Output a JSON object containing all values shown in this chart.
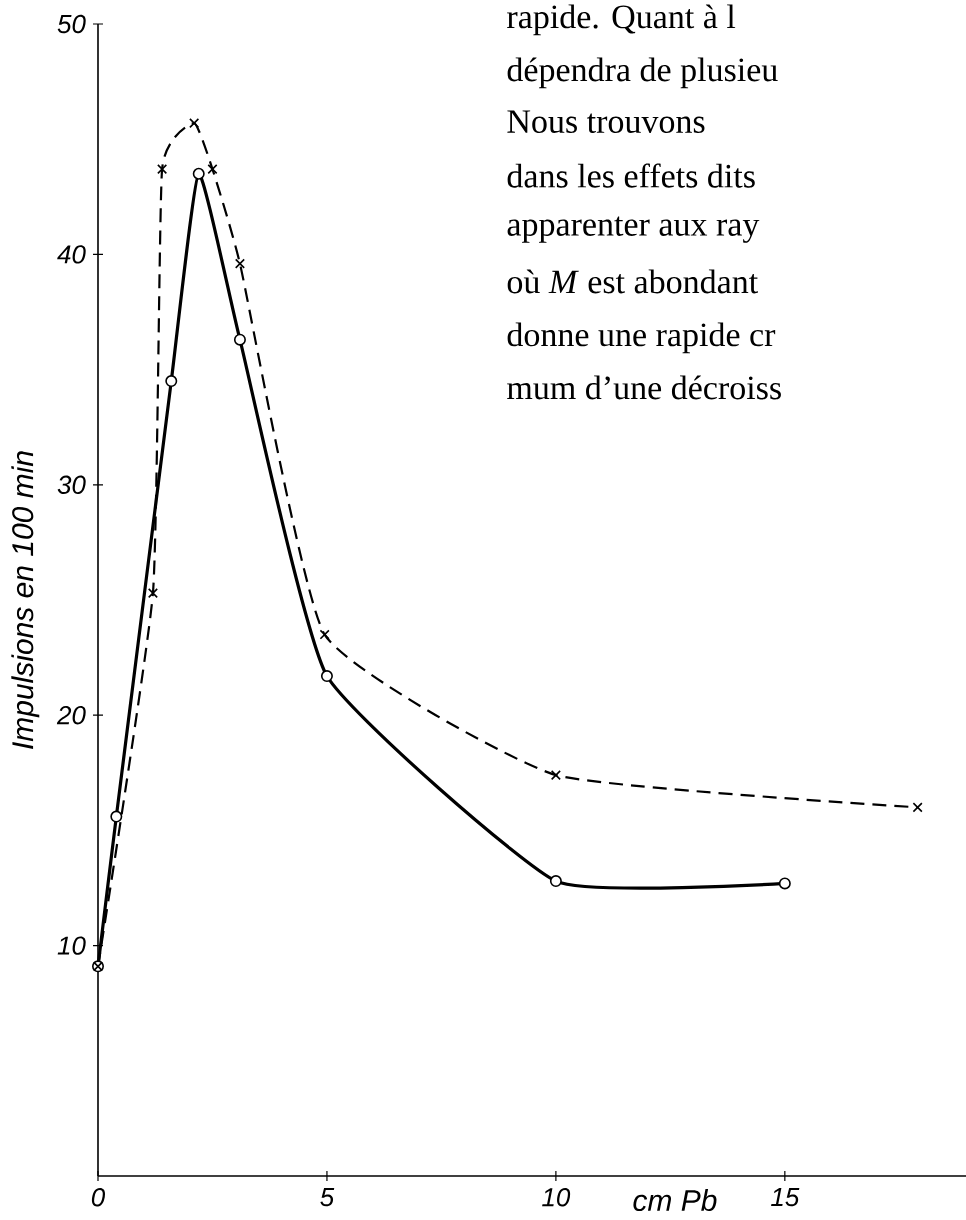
{
  "chart_data": {
    "type": "line",
    "xlabel": "cm Pb",
    "ylabel": "Impulsions en 100 min",
    "xlim": [
      0,
      19
    ],
    "ylim": [
      0,
      50
    ],
    "xticks": [
      0,
      5,
      10,
      15
    ],
    "yticks": [
      10,
      20,
      30,
      40,
      50
    ],
    "series": [
      {
        "color": "#000000",
        "marker": "circle",
        "line_style": "solid",
        "x": [
          0,
          0.4,
          1.6,
          2.2,
          3.1,
          5.0,
          10,
          15
        ],
        "values": [
          9.1,
          15.6,
          34.5,
          43.5,
          36.3,
          21.7,
          12.8,
          12.7
        ]
      },
      {
        "color": "#000000",
        "marker": "cross",
        "line_style": "dashed",
        "x": [
          0,
          1.2,
          1.4,
          2.1,
          2.5,
          3.1,
          4.95,
          10,
          17.9
        ],
        "values": [
          9.1,
          25.3,
          43.7,
          45.7,
          43.7,
          39.6,
          23.5,
          17.4,
          16.0
        ]
      }
    ],
    "grid": false,
    "annotations": [
      "rapide. Quant à l",
      "dépendra de plusieu",
      "Nous trouvons",
      "dans les effets dits",
      "apparenter aux ray",
      "où *M* est abondant",
      "donne une rapide cr",
      "mum d’une décroiss"
    ]
  }
}
